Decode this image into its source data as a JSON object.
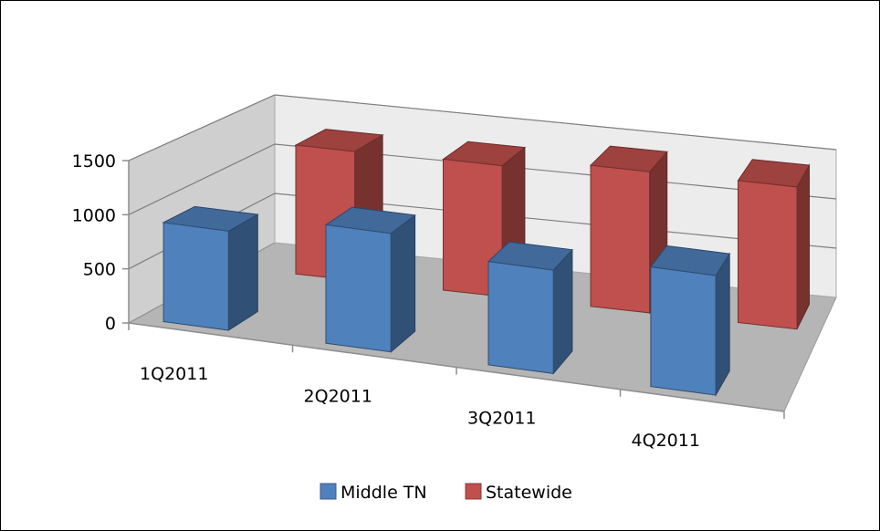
{
  "chart_data": {
    "type": "bar",
    "categories": [
      "1Q2011",
      "2Q2011",
      "3Q2011",
      "4Q2011"
    ],
    "series": [
      {
        "name": "Middle TN",
        "values": [
          920,
          1100,
          960,
          1110
        ],
        "color": "#4F81BD"
      },
      {
        "name": "Statewide",
        "values": [
          1270,
          1290,
          1390,
          1400
        ],
        "color": "#C0504D"
      }
    ],
    "yticks": [
      0,
      500,
      1000,
      1500
    ],
    "ylim": [
      0,
      1500
    ],
    "grid": true,
    "legend_position": "bottom",
    "style": "3d-clustered-column",
    "title": "",
    "xlabel": "",
    "ylabel": ""
  }
}
